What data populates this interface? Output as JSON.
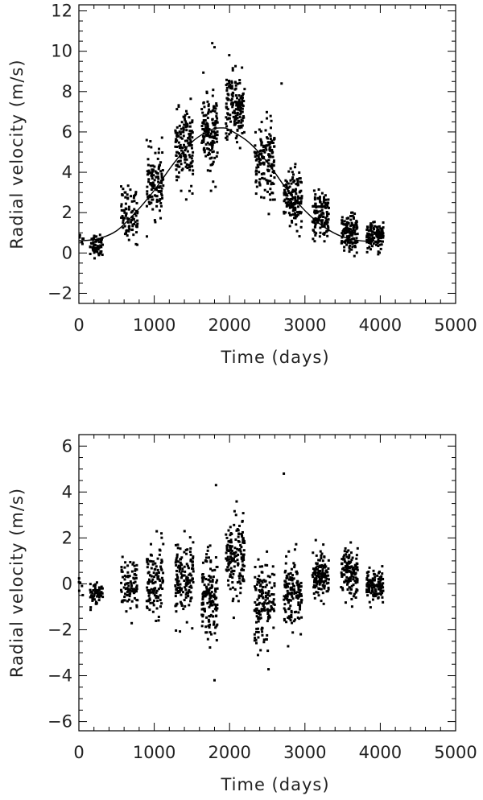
{
  "chart_data": [
    {
      "type": "scatter",
      "title": "",
      "xlabel": "Time (days)",
      "ylabel": "Radial velocity (m/s)",
      "xlim": [
        0,
        5000
      ],
      "ylim": [
        -2.5,
        12.3
      ],
      "x_ticks": [
        0,
        1000,
        2000,
        3000,
        4000,
        5000
      ],
      "x_tick_labels": [
        "0",
        "1000",
        "2000",
        "3000",
        "4000",
        "5000"
      ],
      "y_ticks": [
        -2,
        0,
        2,
        4,
        6,
        8,
        10,
        12
      ],
      "y_tick_labels": [
        "−2",
        "0",
        "2",
        "4",
        "6",
        "8",
        "10",
        "12"
      ],
      "grid": false,
      "legend": "none",
      "series": [
        {
          "kind": "points",
          "groups": [
            {
              "x_range": [
                0,
                60
              ],
              "mean": 0.8,
              "spread": 0.4,
              "count": 6
            },
            {
              "x_range": [
                150,
                320
              ],
              "mean": 0.4,
              "spread": 0.5,
              "count": 60
            },
            {
              "x_range": [
                560,
                780
              ],
              "mean": 1.9,
              "spread": 1.2,
              "count": 90
            },
            {
              "x_range": [
                900,
                1120
              ],
              "mean": 3.5,
              "spread": 1.4,
              "count": 120
            },
            {
              "x_range": [
                1280,
                1520
              ],
              "mean": 5.2,
              "spread": 1.6,
              "count": 150
            },
            {
              "x_range": [
                1630,
                1840
              ],
              "mean": 5.9,
              "spread": 1.8,
              "count": 150
            },
            {
              "x_range": [
                1950,
                2200
              ],
              "mean": 7.2,
              "spread": 1.5,
              "count": 160
            },
            {
              "x_range": [
                2330,
                2600
              ],
              "mean": 4.6,
              "spread": 1.7,
              "count": 150
            },
            {
              "x_range": [
                2720,
                2960
              ],
              "mean": 2.7,
              "spread": 1.3,
              "count": 140
            },
            {
              "x_range": [
                3100,
                3320
              ],
              "mean": 1.8,
              "spread": 1.1,
              "count": 130
            },
            {
              "x_range": [
                3480,
                3700
              ],
              "mean": 1.0,
              "spread": 0.8,
              "count": 130
            },
            {
              "x_range": [
                3820,
                4040
              ],
              "mean": 0.8,
              "spread": 0.6,
              "count": 120
            }
          ],
          "outliers": [
            [
              1770,
              10.4
            ],
            [
              1800,
              10.2
            ],
            [
              2690,
              8.4
            ]
          ]
        },
        {
          "kind": "fit-curve",
          "x": [
            0,
            250,
            500,
            750,
            1000,
            1250,
            1500,
            1750,
            1900,
            2000,
            2250,
            2500,
            2750,
            3000,
            3250,
            3500,
            3750,
            4000
          ],
          "values": [
            0.6,
            0.7,
            1.1,
            2.0,
            3.1,
            4.4,
            5.5,
            6.1,
            6.2,
            6.1,
            5.5,
            4.5,
            3.2,
            2.1,
            1.3,
            0.8,
            0.6,
            0.6
          ]
        }
      ]
    },
    {
      "type": "scatter",
      "title": "",
      "xlabel": "Time (days)",
      "ylabel": "Radial velocity (m/s)",
      "xlim": [
        0,
        5000
      ],
      "ylim": [
        -6.4,
        6.5
      ],
      "x_ticks": [
        0,
        1000,
        2000,
        3000,
        4000,
        5000
      ],
      "x_tick_labels": [
        "0",
        "1000",
        "2000",
        "3000",
        "4000",
        "5000"
      ],
      "y_ticks": [
        -6,
        -4,
        -2,
        0,
        2,
        4,
        6
      ],
      "y_tick_labels": [
        "−6",
        "−4",
        "−2",
        "0",
        "2",
        "4",
        "6"
      ],
      "grid": false,
      "legend": "none",
      "series": [
        {
          "kind": "points",
          "groups": [
            {
              "x_range": [
                0,
                60
              ],
              "mean": 0.2,
              "spread": 0.6,
              "count": 6
            },
            {
              "x_range": [
                150,
                320
              ],
              "mean": -0.4,
              "spread": 0.4,
              "count": 60
            },
            {
              "x_range": [
                560,
                780
              ],
              "mean": -0.1,
              "spread": 1.0,
              "count": 90
            },
            {
              "x_range": [
                900,
                1120
              ],
              "mean": 0.2,
              "spread": 1.4,
              "count": 120
            },
            {
              "x_range": [
                1280,
                1520
              ],
              "mean": 0.1,
              "spread": 1.6,
              "count": 150
            },
            {
              "x_range": [
                1630,
                1840
              ],
              "mean": -0.6,
              "spread": 1.9,
              "count": 150
            },
            {
              "x_range": [
                1950,
                2200
              ],
              "mean": 1.0,
              "spread": 1.5,
              "count": 160
            },
            {
              "x_range": [
                2330,
                2600
              ],
              "mean": -0.8,
              "spread": 1.6,
              "count": 150
            },
            {
              "x_range": [
                2720,
                2960
              ],
              "mean": -0.3,
              "spread": 1.3,
              "count": 140
            },
            {
              "x_range": [
                3100,
                3320
              ],
              "mean": 0.4,
              "spread": 1.0,
              "count": 130
            },
            {
              "x_range": [
                3480,
                3700
              ],
              "mean": 0.5,
              "spread": 0.9,
              "count": 130
            },
            {
              "x_range": [
                3820,
                4040
              ],
              "mean": -0.1,
              "spread": 0.6,
              "count": 120
            }
          ],
          "outliers": [
            [
              1820,
              4.3
            ],
            [
              2720,
              4.8
            ],
            [
              1800,
              -4.2
            ]
          ]
        }
      ]
    }
  ]
}
